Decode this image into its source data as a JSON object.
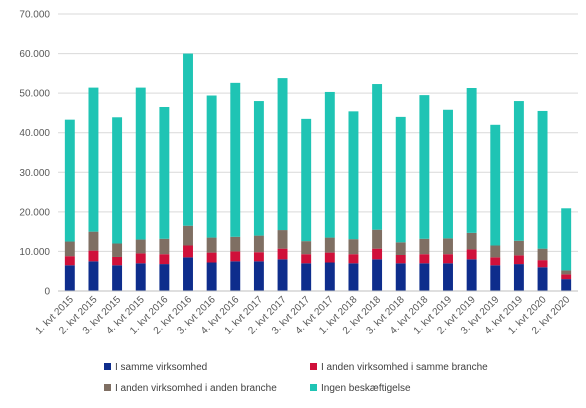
{
  "chart_data": {
    "type": "bar",
    "stacked": true,
    "title": "",
    "xlabel": "",
    "ylabel": "",
    "ylim": [
      0,
      70000
    ],
    "y_ticks": [
      0,
      10000,
      20000,
      30000,
      40000,
      50000,
      60000,
      70000
    ],
    "y_tick_labels": [
      "0",
      "10.000",
      "20.000",
      "30.000",
      "40.000",
      "50.000",
      "60.000",
      "70.000"
    ],
    "grid": "horizontal",
    "legend_position": "bottom",
    "categories": [
      "1. kvt 2015",
      "2. kvt 2015",
      "3. kvt 2015",
      "4. kvt 2015",
      "1. kvt 2016",
      "2. kvt 2016",
      "3. kvt 2016",
      "4. kvt 2016",
      "1. kvt 2017",
      "2. kvt 2017",
      "3. kvt 2017",
      "4. kvt 2017",
      "1. kvt 2018",
      "2. kvt 2018",
      "3. kvt 2018",
      "4. kvt 2018",
      "1. kvt 2019",
      "2. kvt 2019",
      "3. kvt 2019",
      "4. kvt 2019",
      "1. kvt 2020",
      "2. kvt 2020"
    ],
    "series": [
      {
        "name": "I samme virksomhed",
        "color": "#0e2d8c",
        "values": [
          6500,
          7500,
          6500,
          7000,
          6800,
          8500,
          7200,
          7500,
          7500,
          8000,
          7000,
          7200,
          7000,
          8000,
          7000,
          7000,
          7000,
          8000,
          6500,
          6800,
          6000,
          3000
        ]
      },
      {
        "name": "I anden virksomhed i samme branche",
        "color": "#d0103a",
        "values": [
          2300,
          2700,
          2100,
          2500,
          2500,
          3000,
          2500,
          2500,
          2300,
          2700,
          2300,
          2500,
          2300,
          2700,
          2100,
          2300,
          2300,
          2500,
          2000,
          2200,
          1800,
          1200
        ]
      },
      {
        "name": "I anden virksomhed i anden branche",
        "color": "#7f6f63",
        "values": [
          3700,
          4800,
          3400,
          3500,
          3900,
          5000,
          3800,
          3700,
          4200,
          4700,
          3300,
          3800,
          3800,
          4800,
          3200,
          3900,
          4000,
          4200,
          3000,
          3700,
          2900,
          1000
        ]
      },
      {
        "name": "Ingen beskæftigelse",
        "color": "#1fc4b4",
        "values": [
          30800,
          36400,
          31900,
          38400,
          33300,
          43500,
          35900,
          38900,
          34000,
          38400,
          30900,
          36800,
          32300,
          36800,
          31700,
          36300,
          32500,
          36600,
          30500,
          35300,
          34800,
          15700
        ]
      }
    ]
  }
}
